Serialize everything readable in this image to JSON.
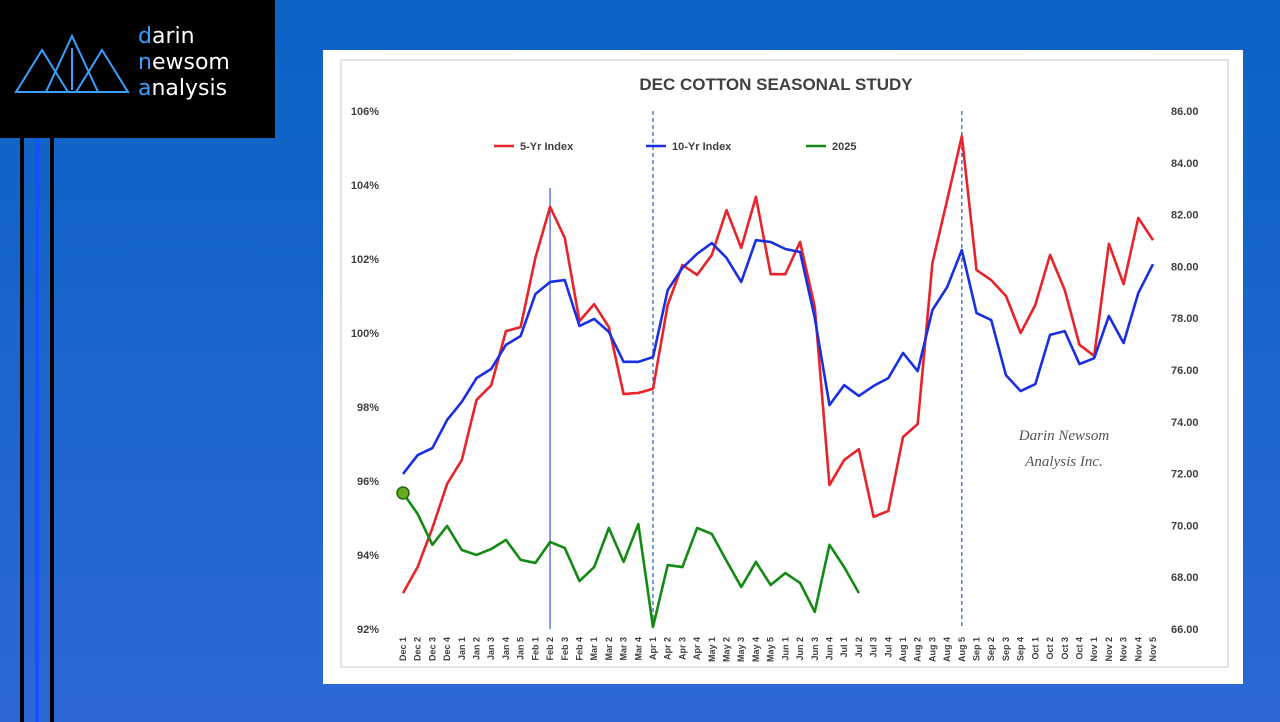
{
  "logo": {
    "lines": [
      "darin",
      "newsom",
      "analysis"
    ]
  },
  "chart_data": {
    "type": "line",
    "title": "DEC COTTON SEASONAL STUDY",
    "annotations": [
      "Darin Newsom",
      "Analysis Inc."
    ],
    "categories": [
      "Dec 1",
      "Dec 2",
      "Dec 3",
      "Dec 4",
      "Jan 1",
      "Jan 2",
      "Jan 3",
      "Jan 4",
      "Jan 5",
      "Feb 1",
      "Feb 2",
      "Feb 3",
      "Feb 4",
      "Mar 1",
      "Mar 2",
      "Mar 3",
      "Mar 4",
      "Apr 1",
      "Apr 2",
      "Apr 3",
      "Apr 4",
      "May 1",
      "May 2",
      "May 3",
      "May 4",
      "May 5",
      "Jun 1",
      "Jun 2",
      "Jun 3",
      "Jun 4",
      "Jul 1",
      "Jul 2",
      "Jul 3",
      "Jul 4",
      "Aug 1",
      "Aug 2",
      "Aug 3",
      "Aug 4",
      "Aug 5",
      "Sep 1",
      "Sep 2",
      "Sep 3",
      "Sep 4",
      "Oct 1",
      "Oct 2",
      "Oct 3",
      "Oct 4",
      "Nov 1",
      "Nov 2",
      "Nov 3",
      "Nov 4",
      "Nov 5"
    ],
    "series": [
      {
        "name": "5-Yr Index",
        "color": "#e8232a",
        "axis": "y",
        "values": [
          92.97,
          93.68,
          94.73,
          95.92,
          96.57,
          98.19,
          98.59,
          100.05,
          100.16,
          102.03,
          103.41,
          102.57,
          100.32,
          100.78,
          100.16,
          98.35,
          98.38,
          98.49,
          100.76,
          101.84,
          101.57,
          102.11,
          103.32,
          102.3,
          103.68,
          101.59,
          101.59,
          102.46,
          100.7,
          95.89,
          96.57,
          96.86,
          95.03,
          95.19,
          97.19,
          97.54,
          101.89,
          103.59,
          105.32,
          101.7,
          101.43,
          101.0,
          100.0,
          100.76,
          102.11,
          101.16,
          99.68,
          99.38,
          102.41,
          101.32,
          103.11,
          102.51
        ]
      },
      {
        "name": "10-Yr Index",
        "color": "#1a2fe0",
        "axis": "y",
        "values": [
          96.19,
          96.7,
          96.89,
          97.65,
          98.14,
          98.78,
          99.03,
          99.68,
          99.92,
          101.05,
          101.38,
          101.43,
          100.19,
          100.38,
          100.03,
          99.22,
          99.22,
          99.35,
          101.16,
          101.76,
          102.14,
          102.43,
          102.03,
          101.38,
          102.51,
          102.46,
          102.27,
          102.19,
          100.41,
          98.05,
          98.59,
          98.3,
          98.57,
          98.78,
          99.46,
          98.97,
          100.62,
          101.24,
          102.24,
          100.54,
          100.35,
          98.86,
          98.43,
          98.62,
          99.95,
          100.05,
          99.16,
          99.32,
          100.46,
          99.73,
          101.08,
          101.86
        ]
      },
      {
        "name": "2025",
        "color": "#138a13",
        "axis": "y2",
        "first_point_marker": true,
        "values": [
          71.25,
          70.44,
          69.25,
          69.98,
          69.05,
          68.86,
          69.09,
          69.44,
          68.67,
          68.55,
          69.36,
          69.13,
          67.85,
          68.39,
          69.9,
          68.59,
          70.05,
          66.08,
          68.47,
          68.39,
          69.9,
          69.67,
          68.63,
          67.62,
          68.59,
          67.7,
          68.16,
          67.78,
          66.66,
          69.25,
          68.39,
          67.39,
          null,
          null,
          null,
          null,
          null,
          null,
          null,
          null,
          null,
          null,
          null,
          null,
          null,
          null,
          null,
          null,
          null,
          null,
          null,
          null
        ]
      }
    ],
    "ylim": [
      92,
      106
    ],
    "yticks": [
      {
        "value": 92,
        "label": "92%"
      },
      {
        "value": 94,
        "label": "94%"
      },
      {
        "value": 96,
        "label": "96%"
      },
      {
        "value": 98,
        "label": "98%"
      },
      {
        "value": 100,
        "label": "100%"
      },
      {
        "value": 102,
        "label": "102%"
      },
      {
        "value": 104,
        "label": "104%"
      },
      {
        "value": 106,
        "label": "106%"
      }
    ],
    "y2lim": [
      66,
      86
    ],
    "y2ticks": [
      {
        "value": 66,
        "label": "66.00"
      },
      {
        "value": 68,
        "label": "68.00"
      },
      {
        "value": 70,
        "label": "70.00"
      },
      {
        "value": 72,
        "label": "72.00"
      },
      {
        "value": 74,
        "label": "74.00"
      },
      {
        "value": 76,
        "label": "76.00"
      },
      {
        "value": 78,
        "label": "78.00"
      },
      {
        "value": 80,
        "label": "80.00"
      },
      {
        "value": 82,
        "label": "82.00"
      },
      {
        "value": 84,
        "label": "84.00"
      },
      {
        "value": 86,
        "label": "86.00"
      }
    ],
    "grid": false,
    "vertical_markers": [
      {
        "index": 10,
        "style": "solid",
        "color": "#3a5ad0"
      },
      {
        "index": 17,
        "style": "dashed",
        "color": "#2a5ab8"
      },
      {
        "index": 38,
        "style": "dashed",
        "color": "#2a5ab8"
      }
    ]
  }
}
